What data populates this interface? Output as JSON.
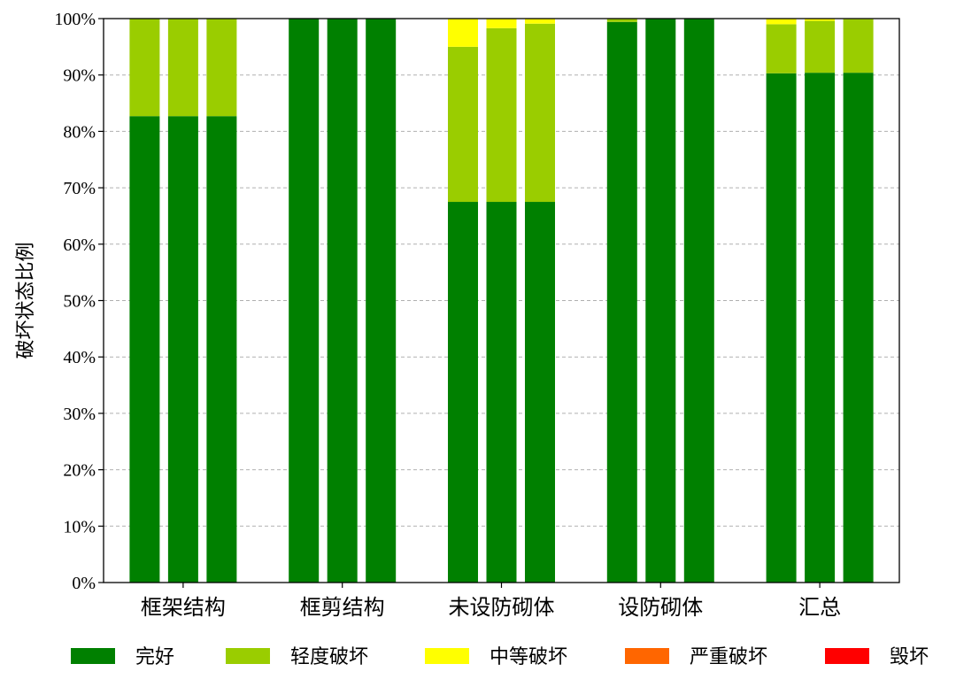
{
  "chart_data": {
    "type": "bar",
    "stacked": true,
    "ylabel": "破坏状态比例",
    "ylim": [
      0,
      100
    ],
    "y_tick_labels": [
      "0%",
      "10%",
      "20%",
      "30%",
      "40%",
      "50%",
      "60%",
      "70%",
      "80%",
      "90%",
      "100%"
    ],
    "grid": "horizontal-dashed",
    "legend_position": "bottom",
    "groups": [
      "框架结构",
      "框剪结构",
      "未设防砌体",
      "设防砌体",
      "汇总"
    ],
    "bars_per_group": 3,
    "series": [
      {
        "name": "完好",
        "color": "#008000",
        "values": [
          [
            82.7,
            82.7,
            82.7
          ],
          [
            100,
            100,
            100
          ],
          [
            67.5,
            67.5,
            67.5
          ],
          [
            99.4,
            100,
            100
          ],
          [
            90.3,
            90.4,
            90.4
          ]
        ]
      },
      {
        "name": "轻度破坏",
        "color": "#9ACD00",
        "values": [
          [
            17.3,
            17.3,
            17.3
          ],
          [
            0,
            0,
            0
          ],
          [
            27.5,
            30.8,
            31.6
          ],
          [
            0.6,
            0,
            0
          ],
          [
            8.7,
            9.2,
            9.5
          ]
        ]
      },
      {
        "name": "中等破坏",
        "color": "#FFFF00",
        "values": [
          [
            0,
            0,
            0
          ],
          [
            0,
            0,
            0
          ],
          [
            5.0,
            1.7,
            0.9
          ],
          [
            0,
            0,
            0
          ],
          [
            1.0,
            0.4,
            0.1
          ]
        ]
      },
      {
        "name": "严重破坏",
        "color": "#FF6600",
        "values": [
          [
            0,
            0,
            0
          ],
          [
            0,
            0,
            0
          ],
          [
            0,
            0,
            0
          ],
          [
            0,
            0,
            0
          ],
          [
            0,
            0,
            0
          ]
        ]
      },
      {
        "name": "毁坏",
        "color": "#FF0000",
        "values": [
          [
            0,
            0,
            0
          ],
          [
            0,
            0,
            0
          ],
          [
            0,
            0,
            0
          ],
          [
            0,
            0,
            0
          ],
          [
            0,
            0,
            0
          ]
        ]
      }
    ]
  }
}
